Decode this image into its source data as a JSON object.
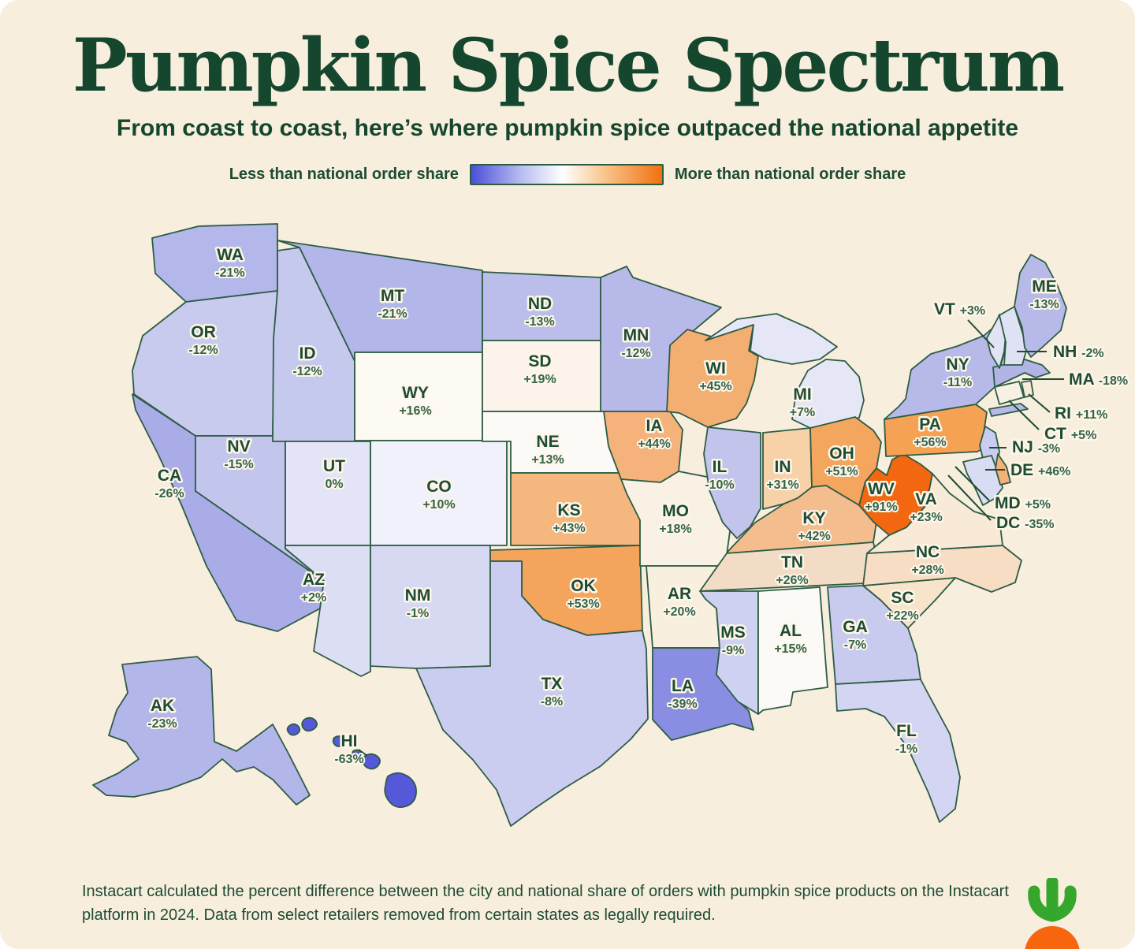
{
  "header": {
    "title": "Pumpkin Spice Spectrum",
    "subtitle": "From coast to coast, here’s where pumpkin spice outpaced the national appetite",
    "title_color": "#15462e"
  },
  "legend": {
    "left_label": "Less than national order share",
    "right_label": "More than national order share",
    "gradient": [
      "#4b50d7",
      "#b9bcf0",
      "#ffffff",
      "#f8bf82",
      "#f1700f"
    ]
  },
  "footer": {
    "text": "Instacart calculated the percent difference between the city and national share of orders with pumpkin spice products on the Instacart platform in 2024. Data from select retailers removed from certain states as legally required."
  },
  "logo": {
    "name": "instacart-carrot-logo",
    "leaf_color": "#35a72c",
    "carrot_color": "#f7660e"
  },
  "chart_data": {
    "type": "heatmap",
    "subtype": "choropleth-us-states",
    "title": "Pumpkin Spice Spectrum",
    "metric": "Percent difference between city and national share of orders with pumpkin spice products, Instacart 2024",
    "unit": "%",
    "legend_low": "Less than national order share",
    "legend_high": "More than national order share",
    "states": {
      "WA": {
        "value": -21,
        "display": "-21%",
        "fill": "#b4b7ea"
      },
      "OR": {
        "value": -12,
        "display": "-12%",
        "fill": "#c8cbee"
      },
      "CA": {
        "value": -26,
        "display": "-26%",
        "fill": "#a9ace7"
      },
      "NV": {
        "value": -15,
        "display": "-15%",
        "fill": "#c2c5ec"
      },
      "ID": {
        "value": -12,
        "display": "-12%",
        "fill": "#c6c9ee"
      },
      "MT": {
        "value": -21,
        "display": "-21%",
        "fill": "#b3b6e9"
      },
      "WY": {
        "value": 16,
        "display": "+16%",
        "fill": "#fdfaf3"
      },
      "UT": {
        "value": 0,
        "display": "0%",
        "fill": "#e3e5f6"
      },
      "CO": {
        "value": 10,
        "display": "+10%",
        "fill": "#f0f1fa"
      },
      "AZ": {
        "value": 2,
        "display": "+2%",
        "fill": "#dcdef4"
      },
      "NM": {
        "value": -1,
        "display": "-1%",
        "fill": "#d7d9f3"
      },
      "ND": {
        "value": -13,
        "display": "-13%",
        "fill": "#bbbeea"
      },
      "SD": {
        "value": 19,
        "display": "+19%",
        "fill": "#fcf4eb"
      },
      "NE": {
        "value": 13,
        "display": "+13%",
        "fill": "#fbfaf7"
      },
      "KS": {
        "value": 43,
        "display": "+43%",
        "fill": "#f6b77e"
      },
      "OK": {
        "value": 53,
        "display": "+53%",
        "fill": "#f5a45c"
      },
      "TX": {
        "value": -8,
        "display": "-8%",
        "fill": "#cbcdf0"
      },
      "MN": {
        "value": -12,
        "display": "-12%",
        "fill": "#b7bae9"
      },
      "IA": {
        "value": 44,
        "display": "+44%",
        "fill": "#f5b27b"
      },
      "MO": {
        "value": 18,
        "display": "+18%",
        "fill": "#faf1e5"
      },
      "AR": {
        "value": 20,
        "display": "+20%",
        "fill": "#f9efdf"
      },
      "LA": {
        "value": -39,
        "display": "-39%",
        "fill": "#8a8ee2"
      },
      "WI": {
        "value": 45,
        "display": "+45%",
        "fill": "#f3ae71"
      },
      "IL": {
        "value": -10,
        "display": "-10%",
        "fill": "#c2c4ec"
      },
      "MI": {
        "value": 7,
        "display": "+7%",
        "fill": "#e5e7f7"
      },
      "IN": {
        "value": 31,
        "display": "+31%",
        "fill": "#f7d2a9"
      },
      "OH": {
        "value": 51,
        "display": "+51%",
        "fill": "#f4a55e"
      },
      "KY": {
        "value": 42,
        "display": "+42%",
        "fill": "#f4bd8d"
      },
      "TN": {
        "value": 26,
        "display": "+26%",
        "fill": "#f3dcc5"
      },
      "MS": {
        "value": -9,
        "display": "-9%",
        "fill": "#cfd1f0"
      },
      "AL": {
        "value": 15,
        "display": "+15%",
        "fill": "#fbfaf6"
      },
      "GA": {
        "value": -7,
        "display": "-7%",
        "fill": "#c8caee"
      },
      "FL": {
        "value": -1,
        "display": "-1%",
        "fill": "#d3d5f2"
      },
      "SC": {
        "value": 22,
        "display": "+22%",
        "fill": "#f8e3cb"
      },
      "NC": {
        "value": 28,
        "display": "+28%",
        "fill": "#f7ddc3"
      },
      "VA": {
        "value": 23,
        "display": "+23%",
        "fill": "#f9e9d7"
      },
      "WV": {
        "value": 91,
        "display": "+91%",
        "fill": "#f26710"
      },
      "PA": {
        "value": 56,
        "display": "+56%",
        "fill": "#f5a254"
      },
      "NY": {
        "value": -11,
        "display": "-11%",
        "fill": "#b7bae9"
      },
      "NJ": {
        "value": -3,
        "display": "-3%",
        "fill": "#c9ccef"
      },
      "DE": {
        "value": 46,
        "display": "+46%",
        "fill": "#f5b077"
      },
      "MD": {
        "value": 5,
        "display": "+5%",
        "fill": "#d9dcf3"
      },
      "DC": {
        "value": -35,
        "display": "-35%",
        "fill": "#9b9fe6"
      },
      "CT": {
        "value": 5,
        "display": "+5%",
        "fill": "#f8f0e2"
      },
      "RI": {
        "value": 11,
        "display": "+11%",
        "fill": "#f7ead6"
      },
      "MA": {
        "value": -18,
        "display": "-18%",
        "fill": "#b1b4e4"
      },
      "VT": {
        "value": 3,
        "display": "+3%",
        "fill": "#e2e4f6"
      },
      "NH": {
        "value": -2,
        "display": "-2%",
        "fill": "#dfe1f4"
      },
      "ME": {
        "value": -13,
        "display": "-13%",
        "fill": "#b7bae9"
      },
      "AK": {
        "value": -23,
        "display": "-23%",
        "fill": "#b3b6e9"
      },
      "HI": {
        "value": -63,
        "display": "-63%",
        "fill": "#5559d9"
      }
    }
  }
}
